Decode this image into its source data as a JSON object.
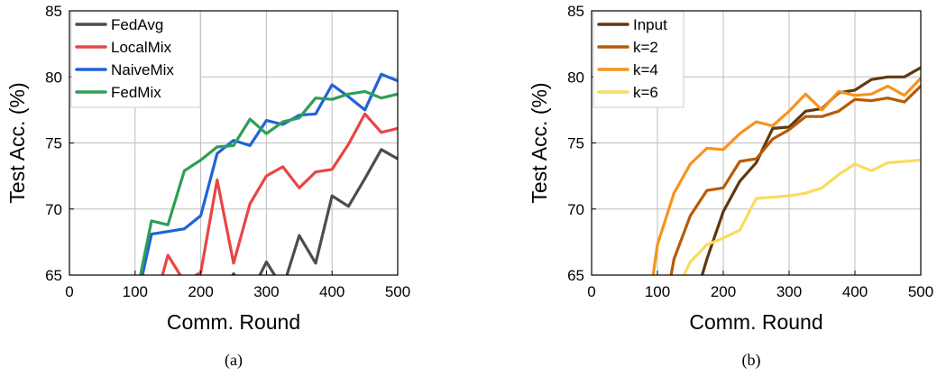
{
  "chart_data": [
    {
      "type": "line",
      "xlabel": "Comm. Round",
      "ylabel": "Test Acc. (%)",
      "caption": "(a)",
      "xlim": [
        0,
        500
      ],
      "ylim": [
        65,
        85
      ],
      "xticks": [
        0,
        100,
        200,
        300,
        400,
        500
      ],
      "yticks": [
        65,
        70,
        75,
        80,
        85
      ],
      "grid": true,
      "legend": "top-left",
      "series": [
        {
          "name": "FedAvg",
          "color": "#4d4d4d",
          "x": [
            200,
            225,
            250,
            275,
            300,
            325,
            350,
            375,
            400,
            425,
            450,
            475,
            500
          ],
          "y": [
            62.0,
            63.0,
            65.1,
            63.5,
            66.0,
            64.0,
            68.0,
            65.9,
            71.0,
            70.2,
            72.3,
            74.5,
            73.8
          ]
        },
        {
          "name": "LocalMix",
          "color": "#e84545",
          "x": [
            125,
            150,
            175,
            200,
            225,
            250,
            275,
            300,
            325,
            350,
            375,
            400,
            425,
            450,
            475,
            500
          ],
          "y": [
            62.0,
            66.5,
            64.5,
            65.2,
            72.2,
            65.9,
            70.4,
            72.5,
            73.2,
            71.6,
            72.8,
            73.0,
            74.9,
            77.2,
            75.8,
            76.1
          ]
        },
        {
          "name": "NaiveMix",
          "color": "#1f63d6",
          "x": [
            100,
            125,
            150,
            175,
            200,
            225,
            250,
            275,
            300,
            325,
            350,
            375,
            400,
            425,
            450,
            475,
            500
          ],
          "y": [
            62.5,
            68.1,
            68.3,
            68.5,
            69.5,
            74.2,
            75.2,
            74.8,
            76.7,
            76.4,
            77.1,
            77.2,
            79.4,
            78.5,
            77.5,
            80.2,
            79.7
          ]
        },
        {
          "name": "FedMix",
          "color": "#2e9e57",
          "x": [
            100,
            125,
            150,
            175,
            200,
            225,
            250,
            275,
            300,
            325,
            350,
            375,
            400,
            425,
            450,
            475,
            500
          ],
          "y": [
            63.0,
            69.1,
            68.8,
            72.9,
            73.7,
            74.7,
            74.8,
            76.8,
            75.7,
            76.6,
            76.9,
            78.4,
            78.3,
            78.7,
            78.9,
            78.4,
            78.7
          ]
        }
      ]
    },
    {
      "type": "line",
      "xlabel": "Comm. Round",
      "ylabel": "Test Acc. (%)",
      "caption": "(b)",
      "xlim": [
        0,
        500
      ],
      "ylim": [
        65,
        85
      ],
      "xticks": [
        0,
        100,
        200,
        300,
        400,
        500
      ],
      "yticks": [
        65,
        70,
        75,
        80,
        85
      ],
      "grid": true,
      "legend": "top-left",
      "series": [
        {
          "name": "Input",
          "color": "#5e3a0c",
          "x": [
            150,
            175,
            200,
            225,
            250,
            275,
            300,
            325,
            350,
            375,
            400,
            425,
            450,
            475,
            500
          ],
          "y": [
            62.0,
            66.2,
            69.8,
            72.1,
            73.5,
            76.1,
            76.2,
            77.4,
            77.6,
            78.8,
            79.0,
            79.8,
            80.0,
            80.0,
            80.7
          ]
        },
        {
          "name": "k=2",
          "color": "#b85a06",
          "x": [
            110,
            125,
            150,
            175,
            200,
            225,
            250,
            275,
            300,
            325,
            350,
            375,
            400,
            425,
            450,
            475,
            500
          ],
          "y": [
            62.0,
            66.2,
            69.5,
            71.4,
            71.6,
            73.6,
            73.8,
            75.3,
            76.0,
            77.0,
            77.0,
            77.4,
            78.3,
            78.2,
            78.4,
            78.1,
            79.3
          ]
        },
        {
          "name": "k=4",
          "color": "#f7921e",
          "x": [
            85,
            100,
            125,
            150,
            175,
            200,
            225,
            250,
            275,
            300,
            325,
            350,
            375,
            400,
            425,
            450,
            475,
            500
          ],
          "y": [
            62.0,
            67.3,
            71.2,
            73.4,
            74.6,
            74.5,
            75.7,
            76.6,
            76.3,
            77.4,
            78.7,
            77.5,
            78.9,
            78.6,
            78.7,
            79.3,
            78.6,
            79.9
          ]
        },
        {
          "name": "k=6",
          "color": "#f9dc5c",
          "x": [
            125,
            150,
            175,
            200,
            225,
            250,
            275,
            300,
            325,
            350,
            375,
            400,
            425,
            450,
            475,
            500
          ],
          "y": [
            63.5,
            66.0,
            67.3,
            67.8,
            68.4,
            70.8,
            70.9,
            71.0,
            71.2,
            71.6,
            72.6,
            73.4,
            72.9,
            73.5,
            73.6,
            73.7
          ]
        }
      ]
    }
  ]
}
